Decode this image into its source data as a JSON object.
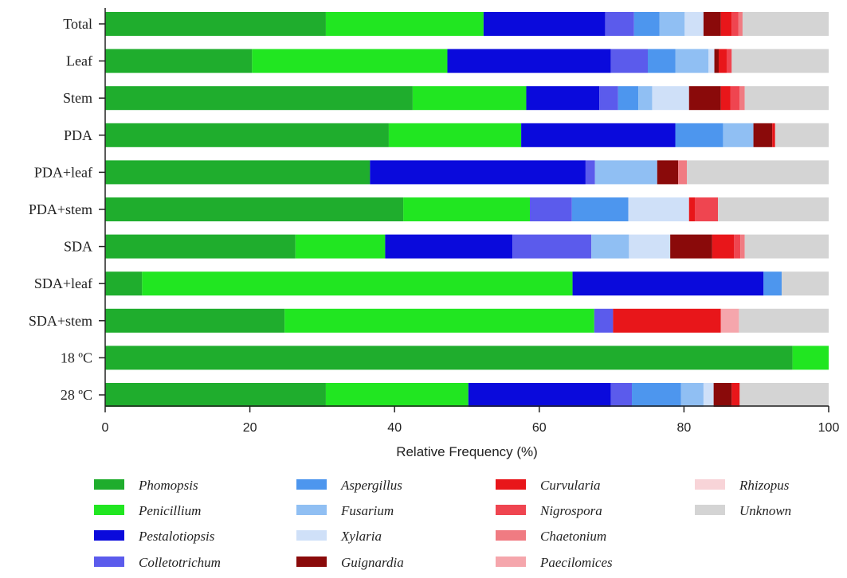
{
  "chart_data": {
    "type": "bar",
    "orientation": "horizontal",
    "stacked": true,
    "title": "",
    "xlabel": "Relative Frequency (%)",
    "ylabel": "",
    "xlim": [
      0,
      100
    ],
    "xticks": [
      "0",
      "20",
      "40",
      "60",
      "80",
      "100"
    ],
    "grid": false,
    "legend_position": "bottom",
    "categories": [
      "Total",
      "Leaf",
      "Stem",
      "PDA",
      "PDA+leaf",
      "PDA+stem",
      "SDA",
      "SDA+leaf",
      "SDA+stem",
      "18 ºC",
      "28 ºC"
    ],
    "series": [
      {
        "name": "Phomopsis",
        "color": "#1fad2d",
        "values": [
          30.5,
          20.3,
          42.5,
          39.2,
          36.6,
          41.2,
          26.3,
          5.1,
          24.8,
          95.0,
          30.5
        ]
      },
      {
        "name": "Penicillium",
        "color": "#21e621",
        "values": [
          21.8,
          27.0,
          15.7,
          18.3,
          0,
          17.5,
          12.4,
          59.5,
          42.8,
          5.0,
          19.7
        ]
      },
      {
        "name": "Pestalotiopsis",
        "color": "#0a0adc",
        "values": [
          16.8,
          22.6,
          10.1,
          21.3,
          29.8,
          0,
          17.6,
          26.4,
          0,
          0,
          19.7
        ]
      },
      {
        "name": "Colletotrichum",
        "color": "#5b5bec",
        "values": [
          4.0,
          5.1,
          2.6,
          0,
          1.3,
          5.8,
          10.9,
          0,
          2.6,
          0,
          2.9
        ]
      },
      {
        "name": "Aspergillus",
        "color": "#4d96ee",
        "values": [
          3.5,
          3.8,
          2.8,
          6.6,
          0,
          7.8,
          0,
          2.5,
          0,
          0,
          6.8
        ]
      },
      {
        "name": "Fusarium",
        "color": "#90bff3",
        "values": [
          3.5,
          4.6,
          1.9,
          4.2,
          8.6,
          0,
          5.2,
          0,
          0,
          0,
          3.1
        ]
      },
      {
        "name": "Xylaria",
        "color": "#cfe0f8",
        "values": [
          2.6,
          0.8,
          5.1,
          0,
          0,
          8.4,
          5.7,
          0,
          0,
          0,
          1.4
        ]
      },
      {
        "name": "Guignardia",
        "color": "#8a0a0a",
        "values": [
          2.4,
          0.6,
          4.4,
          2.6,
          2.9,
          0,
          5.8,
          0,
          0,
          0,
          2.5
        ]
      },
      {
        "name": "Curvularia",
        "color": "#e8161a",
        "values": [
          1.5,
          1.1,
          1.3,
          0.4,
          0,
          0.8,
          3.0,
          0,
          14.9,
          0,
          1.1
        ]
      },
      {
        "name": "Nigrospora",
        "color": "#ef4550",
        "values": [
          0.9,
          0.7,
          1.3,
          0,
          0,
          3.2,
          0.9,
          0,
          0,
          0,
          0
        ]
      },
      {
        "name": "Chaetonium",
        "color": "#f07b82",
        "values": [
          0.6,
          0,
          0.7,
          0,
          1.2,
          0,
          0.6,
          0,
          0,
          0,
          0
        ]
      },
      {
        "name": "Paecilomices",
        "color": "#f5a6ac",
        "values": [
          0,
          0,
          0,
          0,
          0,
          0,
          0,
          0,
          2.5,
          0,
          0
        ]
      },
      {
        "name": "Rhizopus",
        "color": "#f8d4d8",
        "values": [
          0,
          0,
          0,
          0,
          0,
          0,
          0,
          0,
          0,
          0,
          0
        ]
      },
      {
        "name": "Unknown",
        "color": "#d4d4d4",
        "values": [
          11.9,
          13.4,
          11.6,
          7.4,
          19.6,
          15.3,
          11.6,
          6.5,
          12.4,
          0,
          12.3
        ]
      }
    ]
  }
}
